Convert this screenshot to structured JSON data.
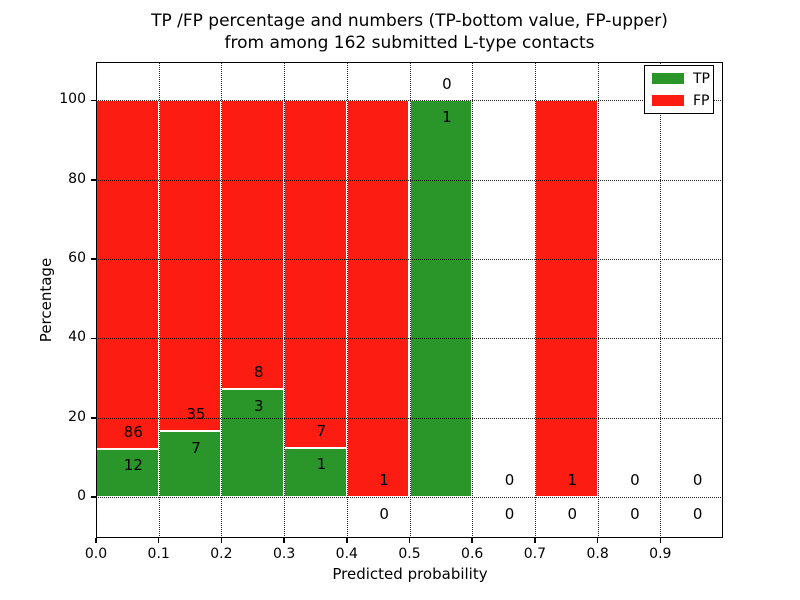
{
  "figure": {
    "title_line1": "TP /FP percentage and numbers (TP-bottom value, FP-upper)",
    "title_line2": "from among 162 submitted L-type contacts"
  },
  "axes": {
    "xlabel": "Predicted probability",
    "ylabel": "Percentage",
    "x_tick_labels": [
      "0.0",
      "0.1",
      "0.2",
      "0.3",
      "0.4",
      "0.5",
      "0.6",
      "0.7",
      "0.8",
      "0.9"
    ],
    "x_tick_values": [
      0.0,
      0.1,
      0.2,
      0.3,
      0.4,
      0.5,
      0.6,
      0.7,
      0.8,
      0.9
    ],
    "y_tick_labels": [
      "0",
      "20",
      "40",
      "60",
      "80",
      "100"
    ],
    "y_tick_values": [
      0,
      20,
      40,
      60,
      80,
      100
    ],
    "xlim": [
      0.0,
      1.0
    ],
    "ylim": [
      -10.3,
      109.7
    ],
    "grid": true
  },
  "legend": {
    "position": "upper right",
    "items": [
      {
        "label": "TP",
        "color": "#2a962a"
      },
      {
        "label": "FP",
        "color": "#fd1c12"
      }
    ]
  },
  "chart_data": {
    "type": "bar",
    "stacked": true,
    "title": "TP /FP percentage and numbers (TP-bottom value, FP-upper) from among 162 submitted L-type contacts",
    "xlabel": "Predicted probability",
    "ylabel": "Percentage",
    "total_contacts": 162,
    "bin_width": 0.1,
    "series_names": [
      "TP",
      "FP"
    ],
    "annotation_rule": "TP count below green bar top, FP count above it",
    "bins": [
      {
        "x0": 0.0,
        "x1": 0.1,
        "tp": 12,
        "fp": 86,
        "tp_pct": 12.2,
        "fp_pct": 87.8
      },
      {
        "x0": 0.1,
        "x1": 0.2,
        "tp": 7,
        "fp": 35,
        "tp_pct": 16.7,
        "fp_pct": 83.3
      },
      {
        "x0": 0.2,
        "x1": 0.3,
        "tp": 3,
        "fp": 8,
        "tp_pct": 27.3,
        "fp_pct": 72.7
      },
      {
        "x0": 0.3,
        "x1": 0.4,
        "tp": 1,
        "fp": 7,
        "tp_pct": 12.5,
        "fp_pct": 87.5
      },
      {
        "x0": 0.4,
        "x1": 0.5,
        "tp": 0,
        "fp": 1,
        "tp_pct": 0,
        "fp_pct": 100
      },
      {
        "x0": 0.5,
        "x1": 0.6,
        "tp": 1,
        "fp": 0,
        "tp_pct": 100,
        "fp_pct": 0
      },
      {
        "x0": 0.6,
        "x1": 0.7,
        "tp": 0,
        "fp": 0,
        "tp_pct": 0,
        "fp_pct": 0
      },
      {
        "x0": 0.7,
        "x1": 0.8,
        "tp": 0,
        "fp": 1,
        "tp_pct": 0,
        "fp_pct": 100
      },
      {
        "x0": 0.8,
        "x1": 0.9,
        "tp": 0,
        "fp": 0,
        "tp_pct": 0,
        "fp_pct": 0
      },
      {
        "x0": 0.9,
        "x1": 1.0,
        "tp": 0,
        "fp": 0,
        "tp_pct": 0,
        "fp_pct": 0
      }
    ],
    "colors": {
      "tp": "#2a962a",
      "fp": "#fd1c12",
      "bar_edge": "#ffffff",
      "grid": "#000000"
    }
  }
}
